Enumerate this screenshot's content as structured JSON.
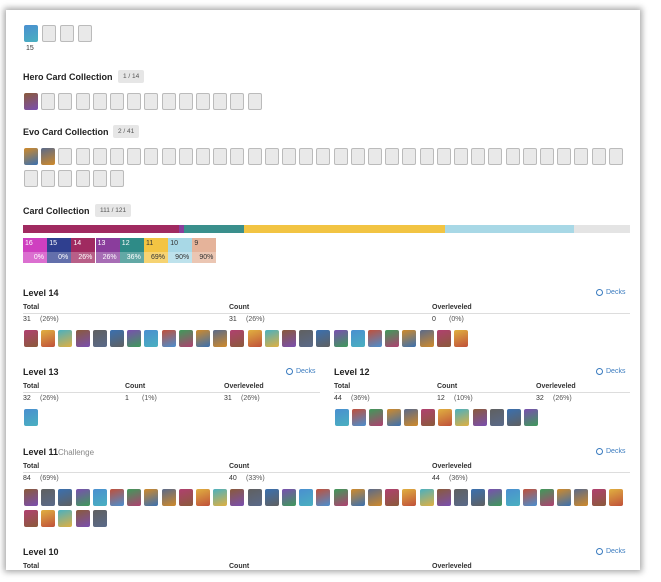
{
  "top": {
    "level": "15"
  },
  "hero": {
    "title": "Hero Card Collection",
    "badge": "1 / 14"
  },
  "evo": {
    "title": "Evo Card Collection",
    "badge": "2 / 41"
  },
  "collection": {
    "title": "Card Collection",
    "badge": "111 / 121"
  },
  "level_badges": [
    {
      "level": "16",
      "pct": "0%",
      "color": "#cf3fc0"
    },
    {
      "level": "15",
      "pct": "0%",
      "color": "#2f3f8f"
    },
    {
      "level": "14",
      "pct": "26%",
      "color": "#a02a60"
    },
    {
      "level": "13",
      "pct": "26%",
      "color": "#8a3d9c"
    },
    {
      "level": "12",
      "pct": "36%",
      "color": "#2e8b87"
    },
    {
      "level": "11",
      "pct": "69%",
      "color": "#f3c443"
    },
    {
      "level": "10",
      "pct": "90%",
      "color": "#a8d8e6"
    },
    {
      "level": "9",
      "pct": "90%",
      "color": "#e5b39a"
    }
  ],
  "labels": {
    "total": "Total",
    "count": "Count",
    "overleveled": "Overleveled",
    "decks": "Decks"
  },
  "levels": [
    {
      "title": "Level 14",
      "color": "#a02a60",
      "total": {
        "value": 31,
        "pct": "(26%)"
      },
      "count": {
        "value": 31,
        "pct": "(26%)"
      },
      "overleveled": {
        "value": 0,
        "pct": "(0%)"
      }
    },
    {
      "title": "Level 13",
      "color": "#8a3d9c",
      "total": {
        "value": 32,
        "pct": "(26%)"
      },
      "count": {
        "value": 1,
        "pct": "(1%)"
      },
      "overleveled": {
        "value": 31,
        "pct": "(26%)"
      }
    },
    {
      "title": "Level 12",
      "color": "#3a8f8c",
      "total": {
        "value": 44,
        "pct": "(36%)"
      },
      "count": {
        "value": 12,
        "pct": "(10%)"
      },
      "overleveled": {
        "value": 32,
        "pct": "(26%)"
      }
    },
    {
      "title": "Level 11",
      "tag": "Challenge",
      "color": "#f2c443",
      "total": {
        "value": 84,
        "pct": "(69%)"
      },
      "count": {
        "value": 40,
        "pct": "(33%)"
      },
      "overleveled": {
        "value": 44,
        "pct": "(36%)"
      }
    },
    {
      "title": "Level 10"
    }
  ]
}
